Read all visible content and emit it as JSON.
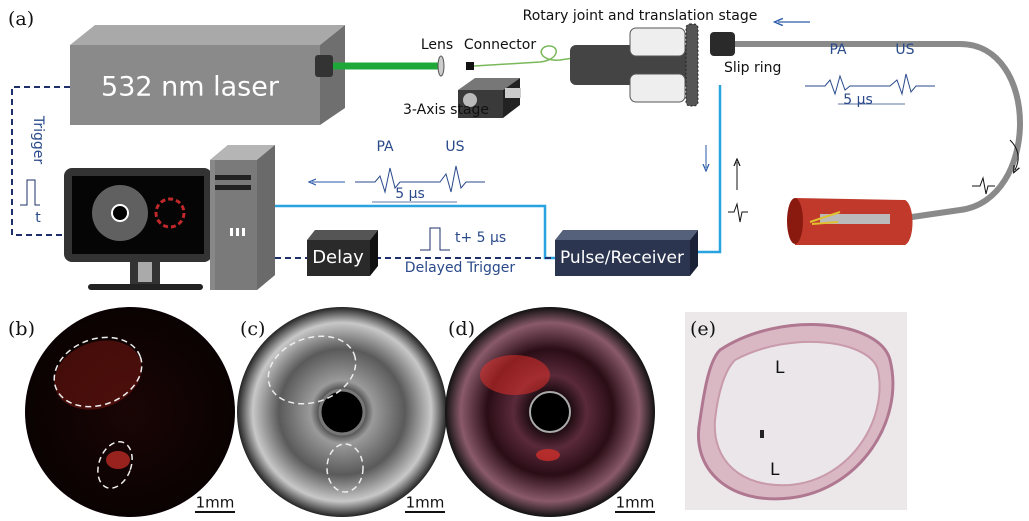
{
  "panel_labels": [
    "(a)",
    "(b)",
    "(c)",
    "(d)",
    "(e)"
  ],
  "laser": "532 nm laser",
  "labels": {
    "lens": "Lens",
    "connector": "Connector",
    "rotary": "Rotary joint and translation stage",
    "slip_ring": "Slip ring",
    "stage": "3-Axis stage",
    "trigger": "Trigger",
    "trigger_t": "t",
    "delay": "Delay",
    "delay_time": "t+ 5 μs",
    "delayed_trigger": "Delayed Trigger",
    "pulse_receiver": "Pulse/Receiver"
  },
  "signals": [
    {
      "pa": "PA",
      "us": "US",
      "interval": "5 μs"
    },
    {
      "pa": "PA",
      "us": "US",
      "interval": "5 μs"
    }
  ],
  "scale_bars": [
    "1mm",
    "1mm",
    "1mm"
  ],
  "lumen_labels": [
    "L",
    "L"
  ]
}
